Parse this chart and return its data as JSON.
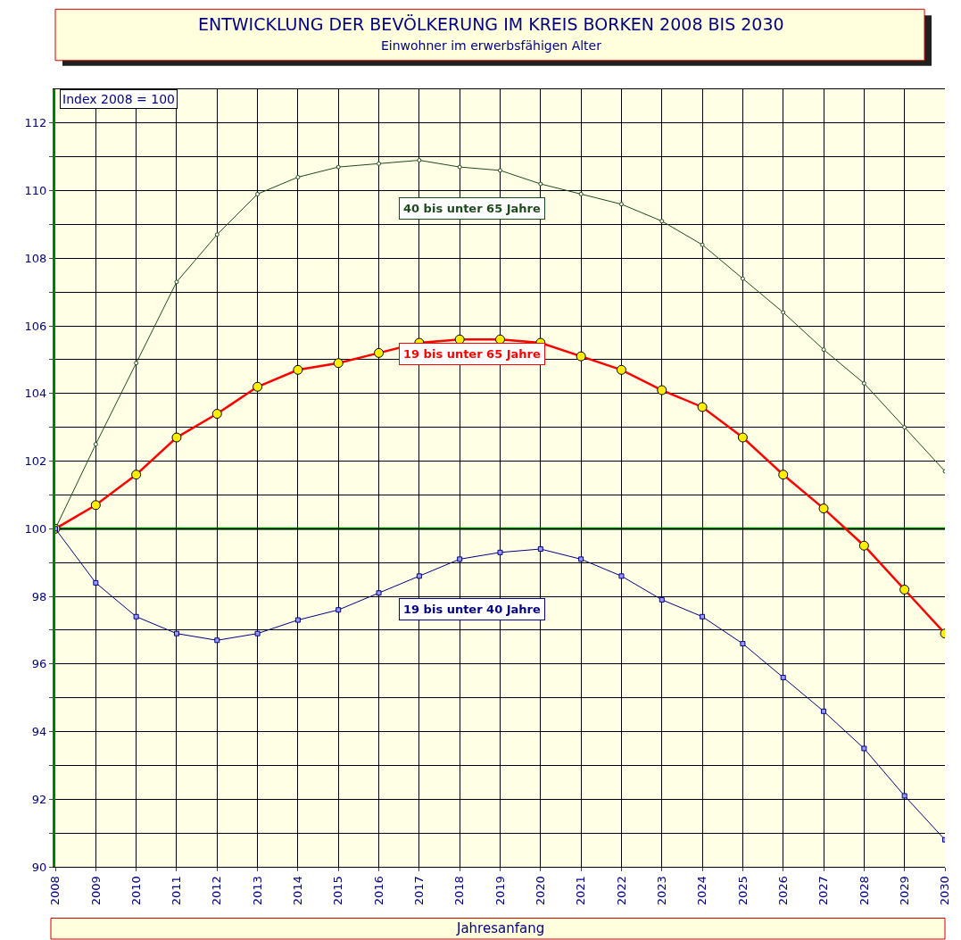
{
  "chart_data": {
    "type": "line",
    "title": "ENTWICKLUNG DER BEVÖLKERUNG IM KREIS BORKEN 2008 BIS 2030",
    "subtitle": "Einwohner im erwerbsfähigen Alter",
    "xlabel": "Jahresanfang",
    "annotations": [
      "Index 2008 = 100"
    ],
    "x": [
      2008,
      2009,
      2010,
      2011,
      2012,
      2013,
      2014,
      2015,
      2016,
      2017,
      2018,
      2019,
      2020,
      2021,
      2022,
      2023,
      2024,
      2025,
      2026,
      2027,
      2028,
      2029,
      2030
    ],
    "series": [
      {
        "name": "40 bis unter 65 Jahre",
        "color": "#1e4a1e",
        "marker": "circle",
        "values": [
          100,
          102.5,
          104.9,
          107.3,
          108.7,
          109.9,
          110.4,
          110.7,
          110.8,
          110.9,
          110.7,
          110.6,
          110.2,
          109.9,
          109.6,
          109.1,
          108.4,
          107.4,
          106.4,
          105.3,
          104.3,
          103.0,
          101.7
        ]
      },
      {
        "name": "19 bis unter 65 Jahre",
        "color": "#ff0000",
        "marker": "circle",
        "values": [
          100,
          100.7,
          101.6,
          102.7,
          103.4,
          104.2,
          104.7,
          104.9,
          105.2,
          105.5,
          105.6,
          105.6,
          105.5,
          105.1,
          104.7,
          104.1,
          103.6,
          102.7,
          101.6,
          100.6,
          99.5,
          98.2,
          96.9
        ]
      },
      {
        "name": "19 bis unter 40 Jahre",
        "color": "#000080",
        "marker": "square",
        "values": [
          100,
          98.4,
          97.4,
          96.9,
          96.7,
          96.9,
          97.3,
          97.6,
          98.1,
          98.6,
          99.1,
          99.3,
          99.4,
          99.1,
          98.6,
          97.9,
          97.4,
          96.6,
          95.6,
          94.6,
          93.5,
          92.1,
          90.8
        ]
      }
    ],
    "xlim": [
      2008,
      2030
    ],
    "xticks": [
      2008,
      2009,
      2010,
      2011,
      2012,
      2013,
      2014,
      2015,
      2016,
      2017,
      2018,
      2019,
      2020,
      2021,
      2022,
      2023,
      2024,
      2025,
      2026,
      2027,
      2028,
      2029,
      2030
    ],
    "ylim": [
      90,
      113
    ],
    "yticks": [
      90,
      {
        "value": 91,
        "label": null
      },
      92,
      {
        "value": 93,
        "label": null
      },
      94,
      {
        "value": 95,
        "label": null
      },
      96,
      {
        "value": 97,
        "label": null
      },
      98,
      {
        "value": 99,
        "label": null
      },
      100,
      {
        "value": 101,
        "label": null
      },
      102,
      {
        "value": 103,
        "label": null
      },
      104,
      {
        "value": 105,
        "label": null
      },
      106,
      {
        "value": 107,
        "label": null
      },
      108,
      {
        "value": 109,
        "label": null
      },
      110,
      {
        "value": 111,
        "label": null
      },
      112
    ],
    "ref_lines": [
      {
        "axis": "y",
        "value": 100,
        "color": "#008000"
      }
    ],
    "grid": true,
    "legend": false
  }
}
